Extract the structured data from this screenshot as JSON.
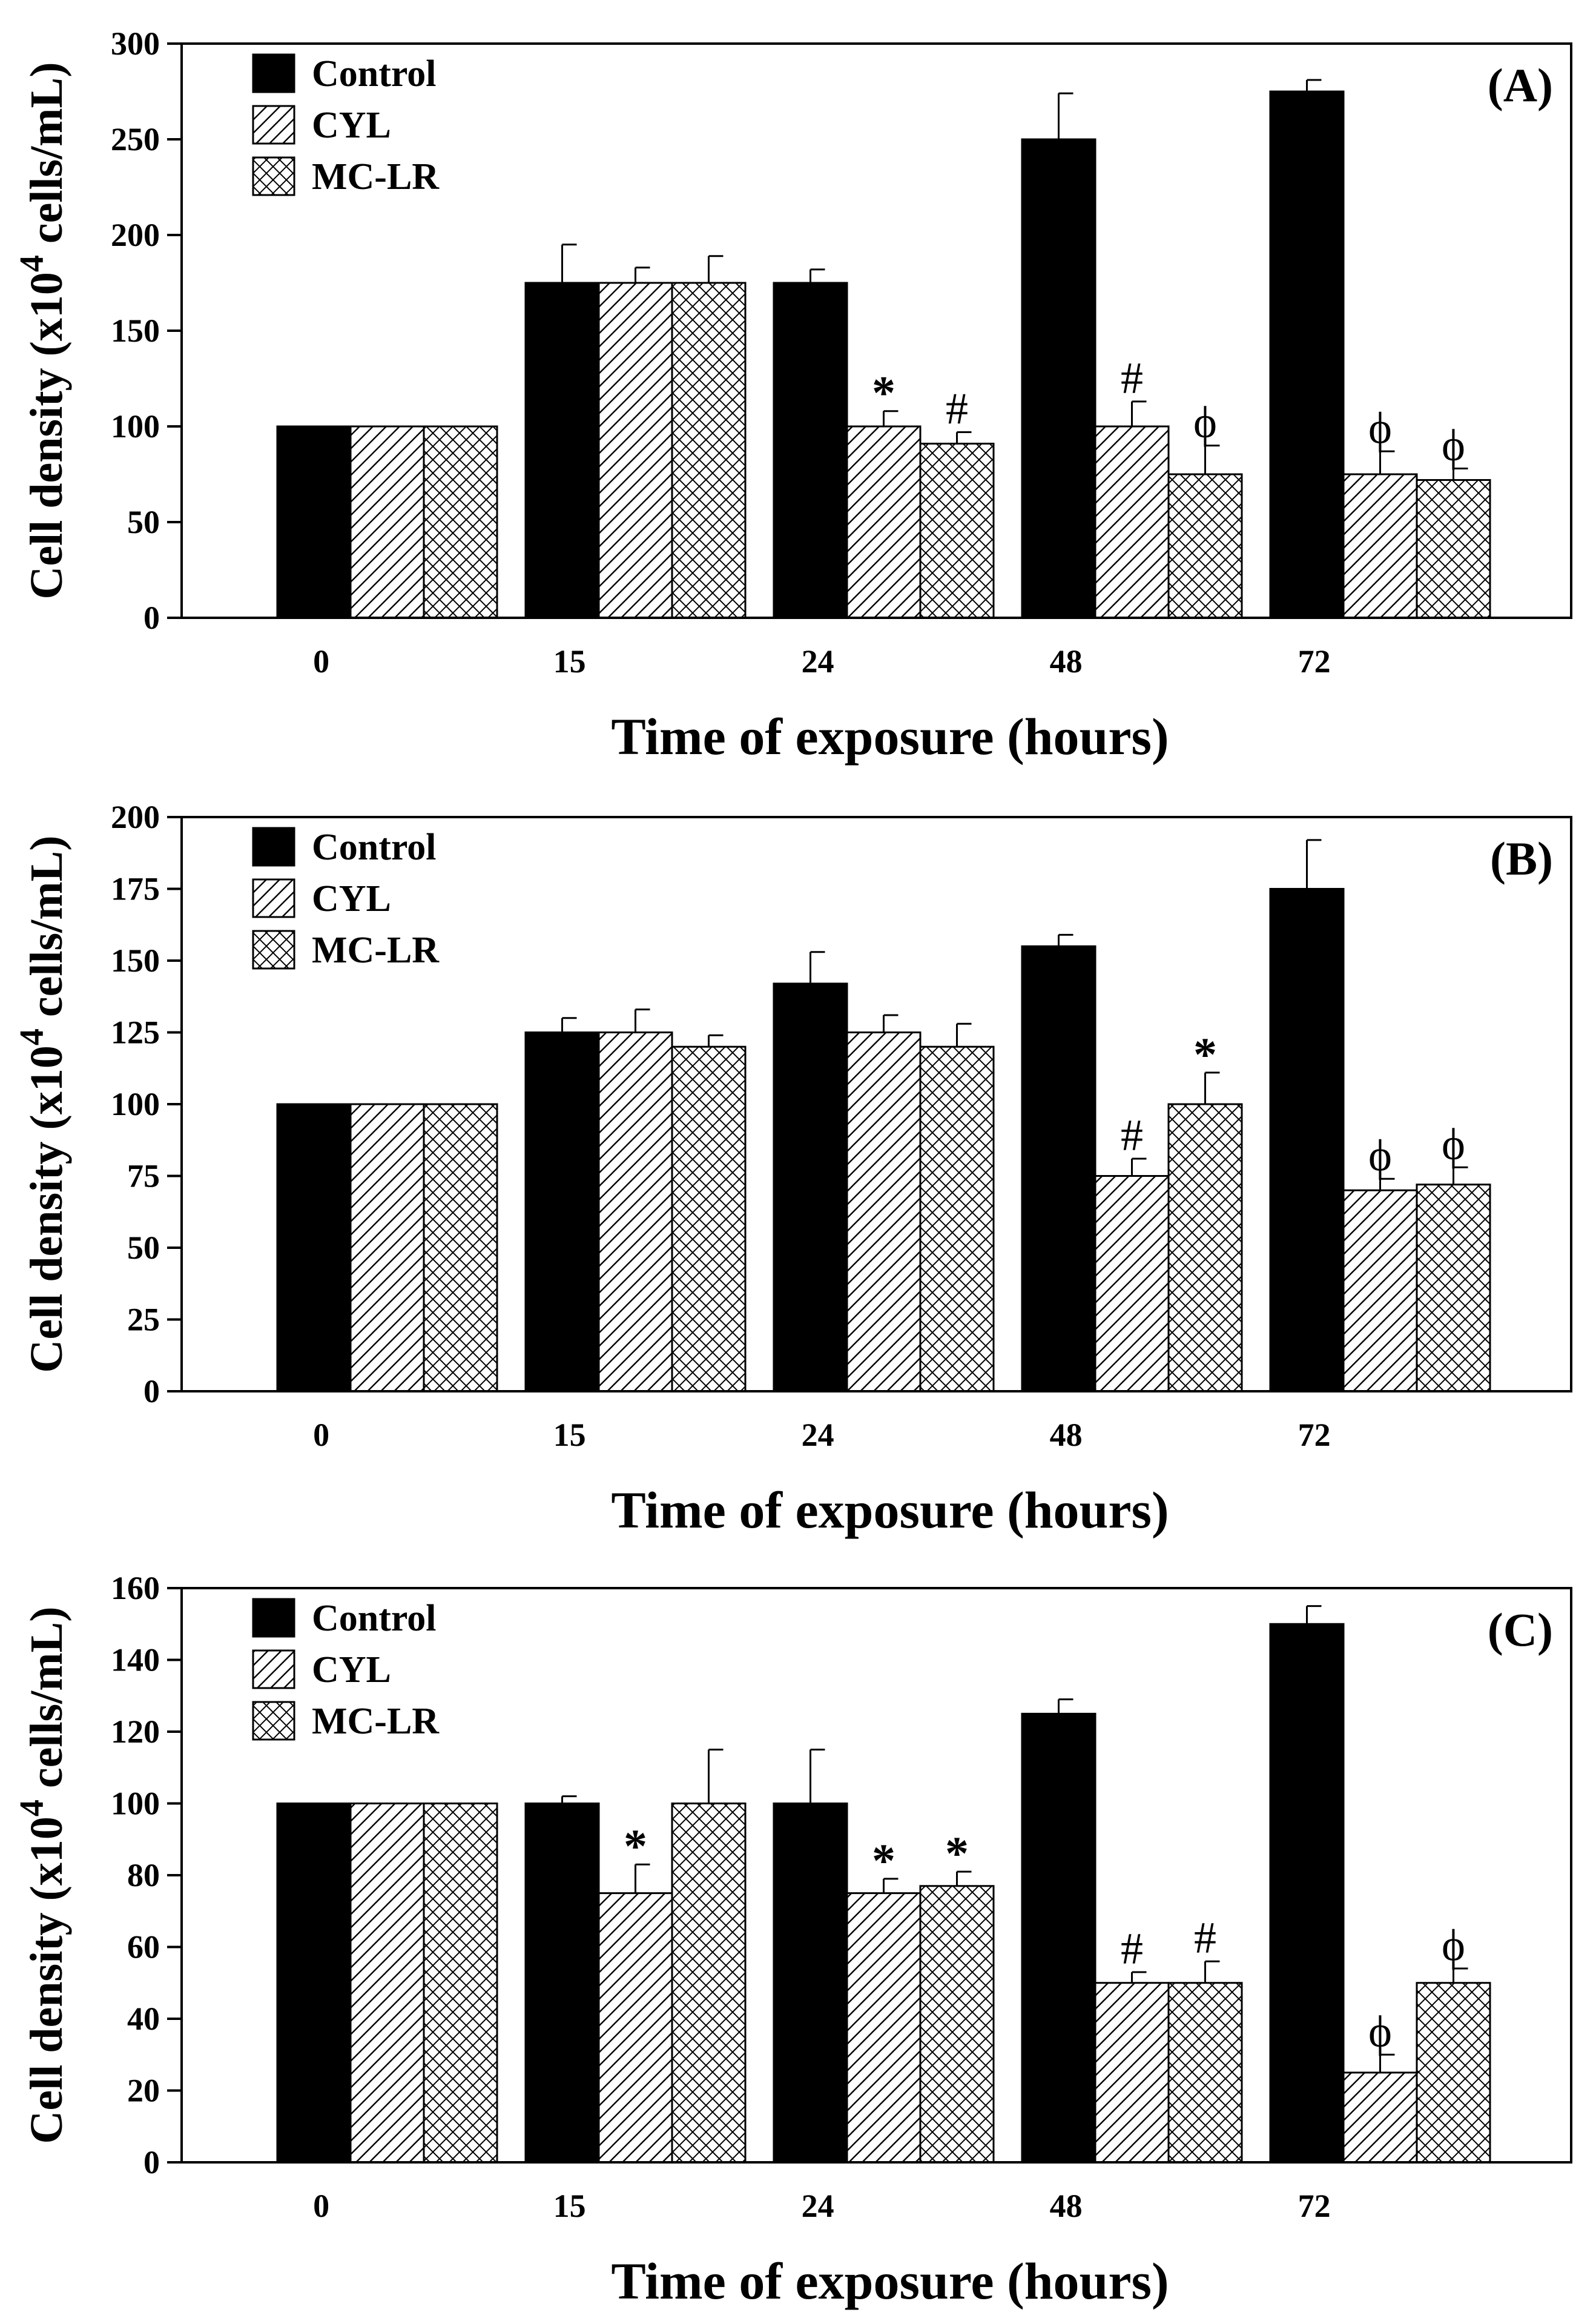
{
  "chart_data": [
    {
      "type": "bar",
      "panel_label": "(A)",
      "categories": [
        "0",
        "15",
        "24",
        "48",
        "72"
      ],
      "xlabel": "Time of exposure (hours)",
      "ylabel_main": "Cell density (x10",
      "ylabel_sup": "4",
      "ylabel_tail": " cells/mL)",
      "ylim": [
        0,
        300
      ],
      "yticks": [
        "0",
        "50",
        "100",
        "150",
        "200",
        "250",
        "300"
      ],
      "legend_position": "top-left",
      "series": [
        {
          "name": "Control",
          "pattern": "solid",
          "values": [
            100,
            175,
            175,
            250,
            275
          ],
          "errors": [
            0,
            20,
            7,
            24,
            6
          ]
        },
        {
          "name": "CYL",
          "pattern": "hatch",
          "values": [
            100,
            175,
            100,
            100,
            75
          ],
          "errors": [
            0,
            8,
            8,
            13,
            12
          ]
        },
        {
          "name": "MC-LR",
          "pattern": "crosshatch",
          "values": [
            100,
            175,
            91,
            75,
            72
          ],
          "errors": [
            0,
            14,
            6,
            15,
            6
          ]
        }
      ],
      "annotations": [
        {
          "category": 2,
          "series": 1,
          "text": "*"
        },
        {
          "category": 2,
          "series": 2,
          "text": "#"
        },
        {
          "category": 3,
          "series": 1,
          "text": "#"
        },
        {
          "category": 3,
          "series": 2,
          "text": "ϕ"
        },
        {
          "category": 4,
          "series": 1,
          "text": "ϕ"
        },
        {
          "category": 4,
          "series": 2,
          "text": "ϕ"
        }
      ]
    },
    {
      "type": "bar",
      "panel_label": "(B)",
      "categories": [
        "0",
        "15",
        "24",
        "48",
        "72"
      ],
      "xlabel": "Time of exposure (hours)",
      "ylabel_main": "Cell density (x10",
      "ylabel_sup": "4",
      "ylabel_tail": " cells/mL)",
      "ylim": [
        0,
        200
      ],
      "yticks": [
        "0",
        "25",
        "50",
        "75",
        "100",
        "125",
        "150",
        "175",
        "200"
      ],
      "legend_position": "top-left",
      "series": [
        {
          "name": "Control",
          "pattern": "solid",
          "values": [
            100,
            125,
            142,
            155,
            175
          ],
          "errors": [
            0,
            5,
            11,
            4,
            17
          ]
        },
        {
          "name": "CYL",
          "pattern": "hatch",
          "values": [
            100,
            125,
            125,
            75,
            70
          ],
          "errors": [
            0,
            8,
            6,
            6,
            4
          ]
        },
        {
          "name": "MC-LR",
          "pattern": "crosshatch",
          "values": [
            100,
            120,
            120,
            100,
            72
          ],
          "errors": [
            0,
            4,
            8,
            11,
            6
          ]
        }
      ],
      "annotations": [
        {
          "category": 3,
          "series": 1,
          "text": "#"
        },
        {
          "category": 3,
          "series": 2,
          "text": "*"
        },
        {
          "category": 4,
          "series": 1,
          "text": "ϕ"
        },
        {
          "category": 4,
          "series": 2,
          "text": "ϕ"
        }
      ]
    },
    {
      "type": "bar",
      "panel_label": "(C)",
      "categories": [
        "0",
        "15",
        "24",
        "48",
        "72"
      ],
      "xlabel": "Time of exposure (hours)",
      "ylabel_main": "Cell density (x10",
      "ylabel_sup": "4",
      "ylabel_tail": " cells/mL)",
      "ylim": [
        0,
        160
      ],
      "yticks": [
        "0",
        "20",
        "40",
        "60",
        "80",
        "100",
        "120",
        "140",
        "160"
      ],
      "legend_position": "top-left",
      "series": [
        {
          "name": "Control",
          "pattern": "solid",
          "values": [
            100,
            100,
            100,
            125,
            150
          ],
          "errors": [
            0,
            2,
            15,
            4,
            5
          ]
        },
        {
          "name": "CYL",
          "pattern": "hatch",
          "values": [
            100,
            75,
            75,
            50,
            25
          ],
          "errors": [
            0,
            8,
            4,
            3,
            5
          ]
        },
        {
          "name": "MC-LR",
          "pattern": "crosshatch",
          "values": [
            100,
            100,
            77,
            50,
            50
          ],
          "errors": [
            0,
            15,
            4,
            6,
            4
          ]
        }
      ],
      "annotations": [
        {
          "category": 1,
          "series": 1,
          "text": "*"
        },
        {
          "category": 2,
          "series": 1,
          "text": "*"
        },
        {
          "category": 2,
          "series": 2,
          "text": "*"
        },
        {
          "category": 3,
          "series": 1,
          "text": "#"
        },
        {
          "category": 3,
          "series": 2,
          "text": "#"
        },
        {
          "category": 4,
          "series": 1,
          "text": "ϕ"
        },
        {
          "category": 4,
          "series": 2,
          "text": "ϕ"
        }
      ]
    }
  ]
}
